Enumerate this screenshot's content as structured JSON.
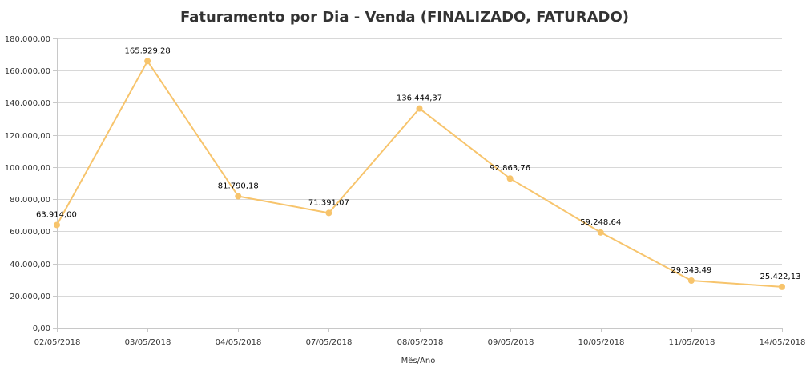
{
  "chart_data": {
    "type": "line",
    "title": "Faturamento por Dia - Venda (FINALIZADO, FATURADO)",
    "xlabel": "Mês/Ano",
    "ylabel": "",
    "categories": [
      "02/05/2018",
      "03/05/2018",
      "04/05/2018",
      "07/05/2018",
      "08/05/2018",
      "09/05/2018",
      "10/05/2018",
      "11/05/2018",
      "14/05/2018"
    ],
    "series": [
      {
        "values": [
          63914.0,
          165929.28,
          81790.18,
          71391.07,
          136444.37,
          92863.76,
          59248.64,
          29343.49,
          25422.13
        ],
        "labels": [
          "63.914,00",
          "165.929,28",
          "81.790,18",
          "71.391,07",
          "136.444,37",
          "92.863,76",
          "59.248,64",
          "29.343,49",
          "25.422,13"
        ],
        "color": "#f7c46c"
      }
    ],
    "ylim": [
      0,
      180000
    ],
    "yticks": [
      0,
      20000,
      40000,
      60000,
      80000,
      100000,
      120000,
      140000,
      160000,
      180000
    ],
    "ytick_labels": [
      "0,00",
      "20.000,00",
      "40.000,00",
      "60.000,00",
      "80.000,00",
      "100.000,00",
      "120.000,00",
      "140.000,00",
      "160.000,00",
      "180.000,00"
    ],
    "grid": true,
    "legend": false
  }
}
